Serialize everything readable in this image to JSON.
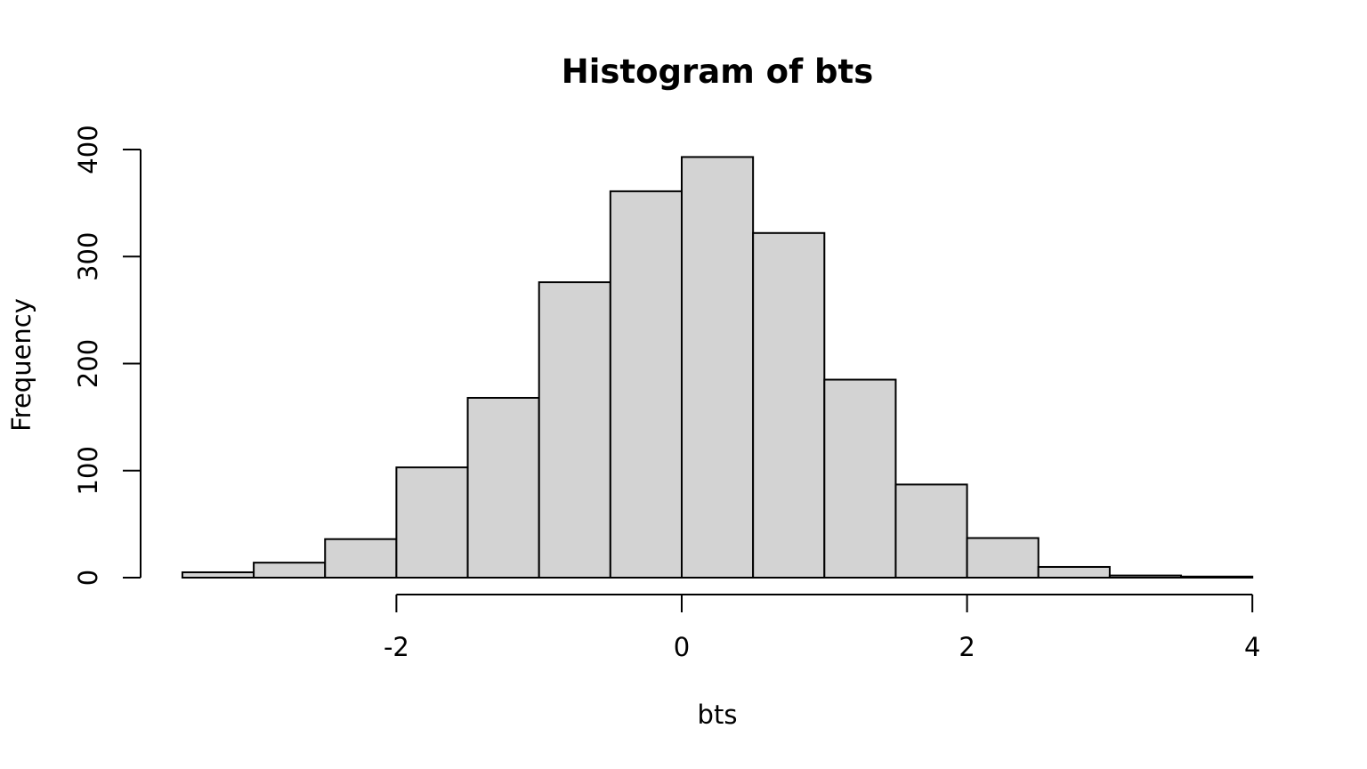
{
  "chart_data": {
    "type": "bar",
    "subtype": "histogram",
    "title": "Histogram of bts",
    "xlabel": "bts",
    "ylabel": "Frequency",
    "bin_edges": [
      -3.5,
      -3.0,
      -2.5,
      -2.0,
      -1.5,
      -1.0,
      -0.5,
      0.0,
      0.5,
      1.0,
      1.5,
      2.0,
      2.5,
      3.0,
      3.5,
      4.0
    ],
    "values": [
      5,
      14,
      36,
      103,
      168,
      276,
      361,
      393,
      322,
      185,
      87,
      37,
      10,
      2,
      1
    ],
    "xlim": [
      -2,
      4
    ],
    "ylim": [
      0,
      400
    ],
    "x_ticks": [
      -2,
      0,
      2,
      4
    ],
    "x_tick_labels": [
      "-2",
      "0",
      "2",
      "4"
    ],
    "y_ticks": [
      0,
      100,
      200,
      300,
      400
    ],
    "y_tick_labels": [
      "0",
      "100",
      "200",
      "300",
      "400"
    ],
    "bar_fill": "#d3d3d3",
    "bar_stroke": "#000000",
    "grid": false,
    "legend": "none"
  }
}
